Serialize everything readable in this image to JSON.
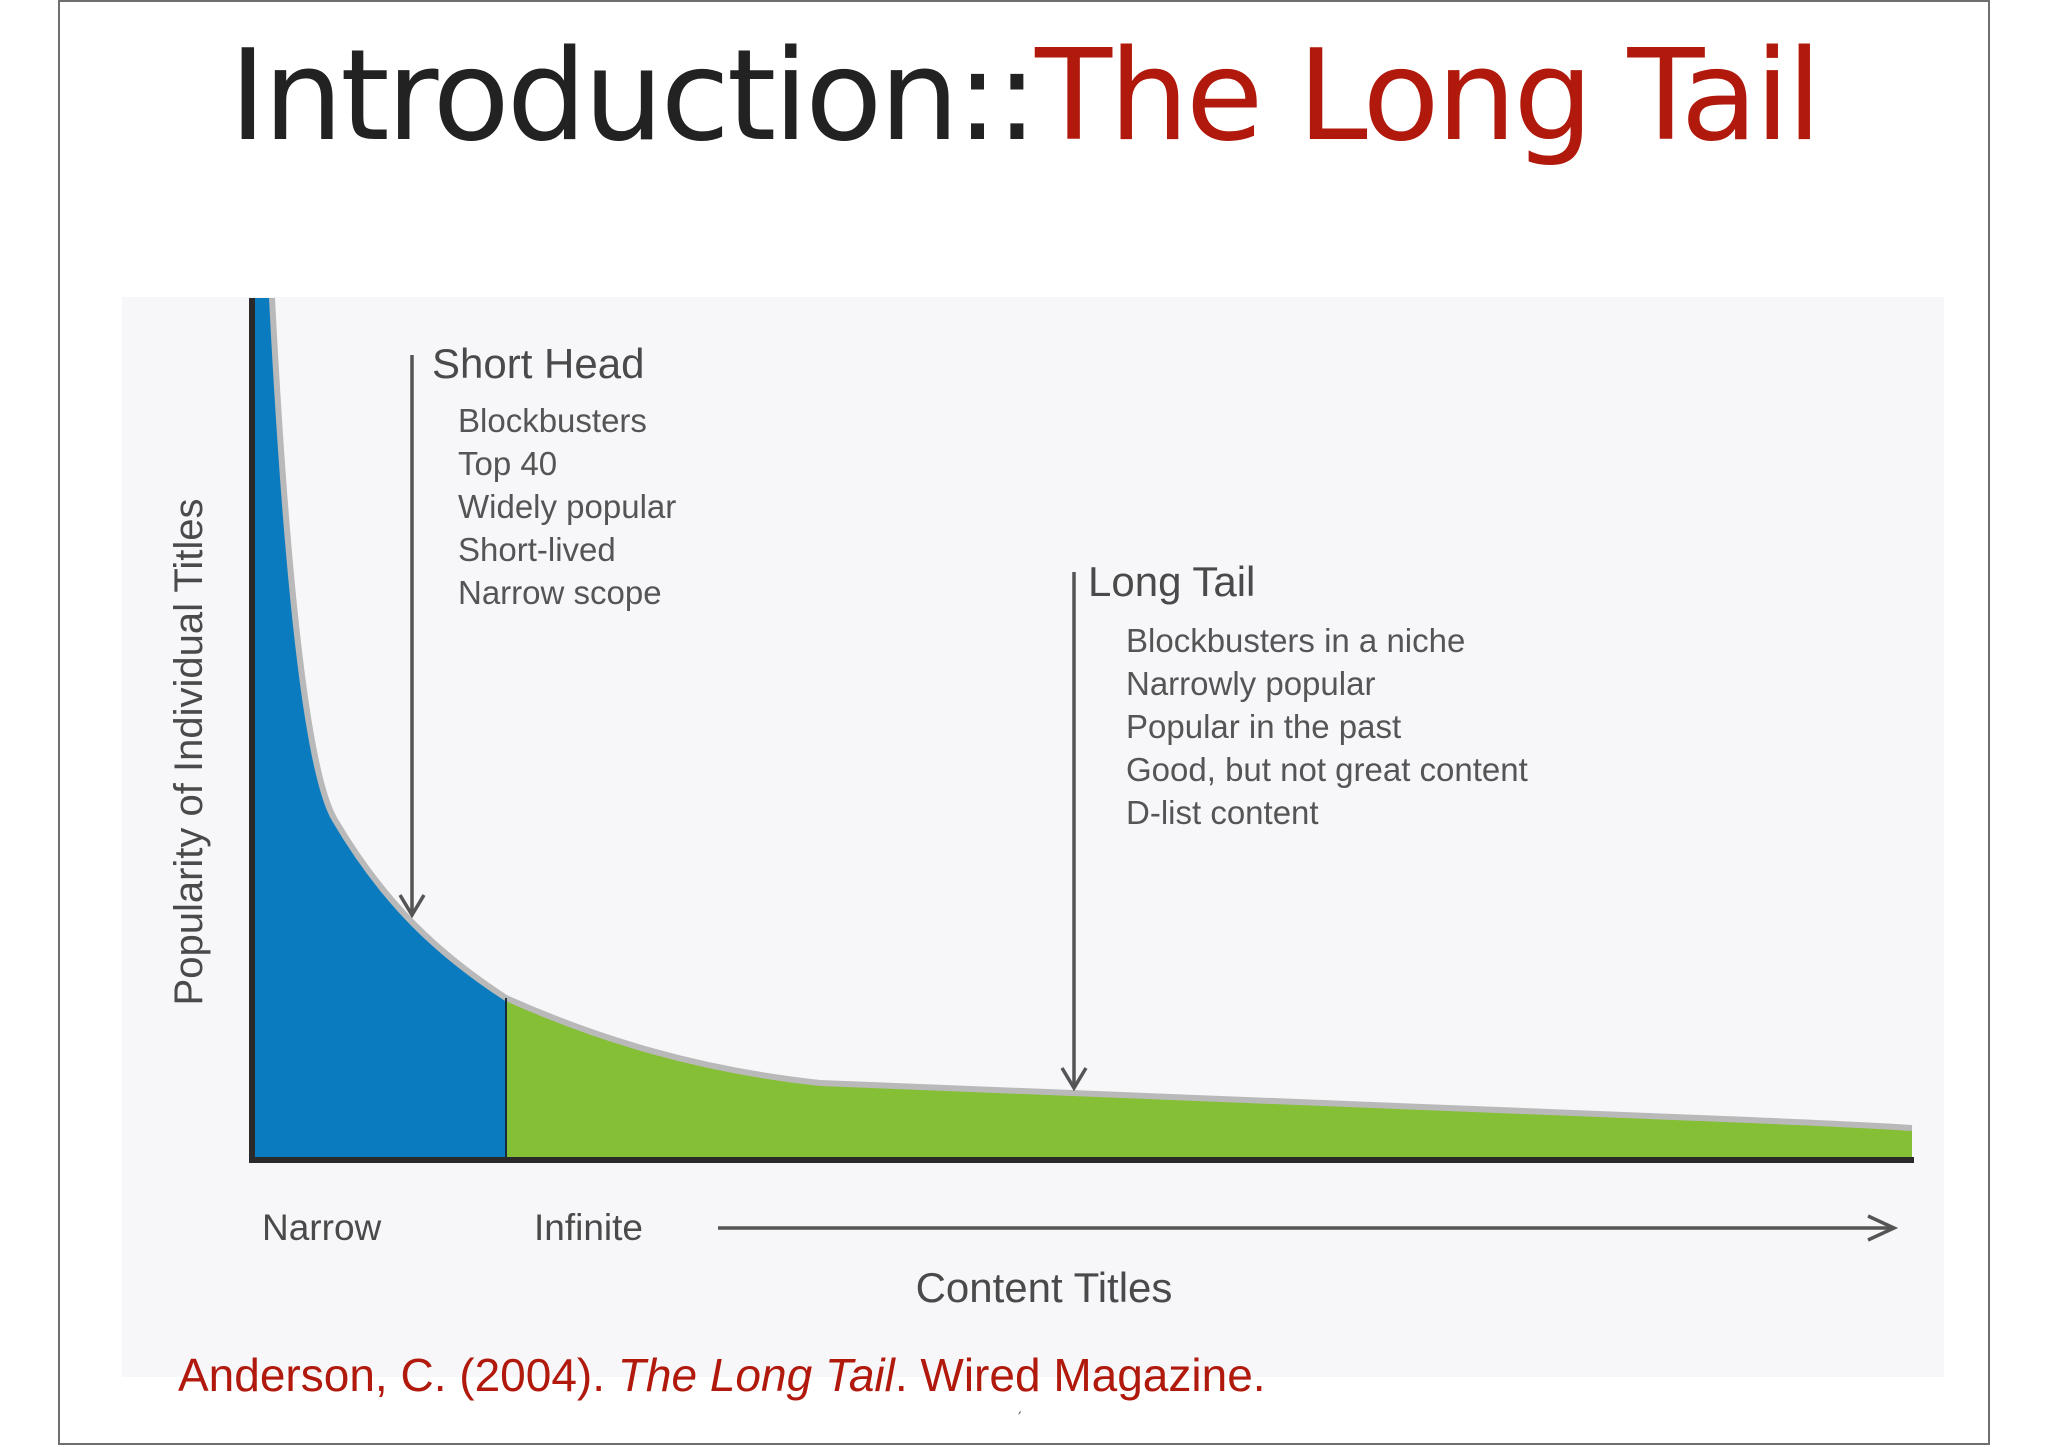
{
  "slide": {
    "title_lead": "Introduction::",
    "title_accent": "The Long Tail",
    "citation_author": "Anderson, C. (2004). ",
    "citation_work": "The Long Tail",
    "citation_rest": ".  Wired Magazine.",
    "page_mark": "′"
  },
  "diagram": {
    "y_axis_label": "Popularity of Individual Titles",
    "x_axis_label": "Content Titles",
    "x_left_label": "Narrow",
    "x_right_label": "Infinite",
    "head": {
      "heading": "Short Head",
      "items": [
        "Blockbusters",
        "Top 40",
        "Widely popular",
        "Short-lived",
        "Narrow scope"
      ]
    },
    "tail": {
      "heading": "Long Tail",
      "items": [
        "Blockbusters in a niche",
        "Narrowly popular",
        "Popular in the past",
        "Good, but not great content",
        "D-list content"
      ]
    },
    "colors": {
      "head_fill": "#0a7bbf",
      "tail_fill": "#85bf35",
      "curve_edge": "#b9b9b9",
      "axis": "#2a2a2a",
      "annotation": "#555555",
      "title_accent": "#b0190c"
    }
  }
}
